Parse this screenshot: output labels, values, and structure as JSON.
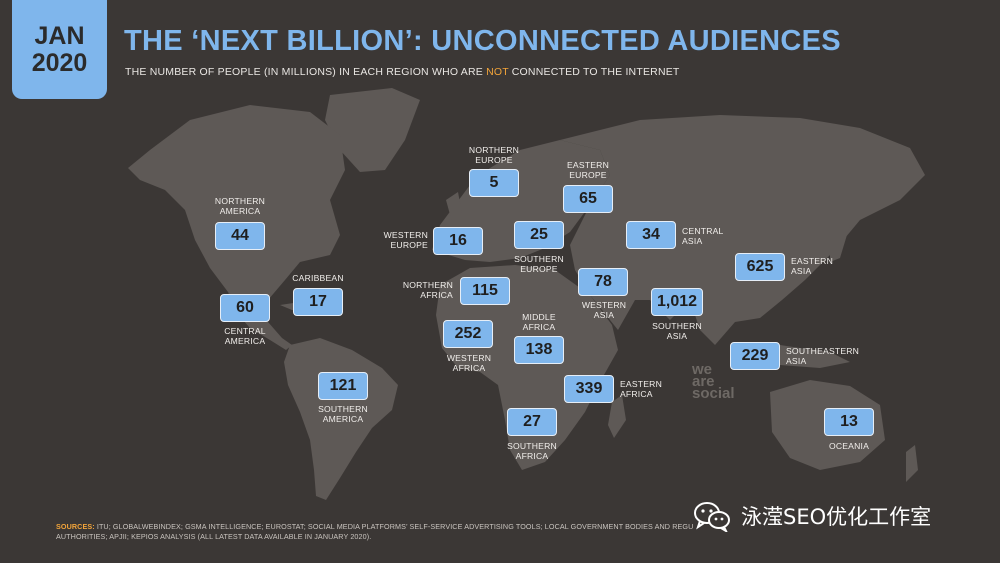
{
  "header": {
    "month": "JAN",
    "year": "2020",
    "title": "THE ‘NEXT BILLION’: UNCONNECTED AUDIENCES",
    "subtitle_before": "THE NUMBER OF PEOPLE (IN MILLIONS) IN EACH REGION WHO ARE ",
    "subtitle_highlight": "NOT",
    "subtitle_after": " CONNECTED TO THE INTERNET"
  },
  "regions": {
    "northern_america": {
      "value": "44",
      "name_1": "NORTHERN",
      "name_2": "AMERICA"
    },
    "central_america": {
      "value": "60",
      "name_1": "CENTRAL",
      "name_2": "AMERICA"
    },
    "caribbean": {
      "value": "17",
      "name_1": "CARIBBEAN"
    },
    "southern_america": {
      "value": "121",
      "name_1": "SOUTHERN",
      "name_2": "AMERICA"
    },
    "northern_europe": {
      "value": "5",
      "name_1": "NORTHERN",
      "name_2": "EUROPE"
    },
    "western_europe": {
      "value": "16",
      "name_1": "WESTERN",
      "name_2": "EUROPE"
    },
    "southern_europe": {
      "value": "25",
      "name_1": "SOUTHERN",
      "name_2": "EUROPE"
    },
    "eastern_europe": {
      "value": "65",
      "name_1": "EASTERN",
      "name_2": "EUROPE"
    },
    "northern_africa": {
      "value": "115",
      "name_1": "NORTHERN",
      "name_2": "AFRICA"
    },
    "western_africa": {
      "value": "252",
      "name_1": "WESTERN",
      "name_2": "AFRICA"
    },
    "middle_africa": {
      "value": "138",
      "name_1": "MIDDLE",
      "name_2": "AFRICA"
    },
    "eastern_africa": {
      "value": "339",
      "name_1": "EASTERN",
      "name_2": "AFRICA"
    },
    "southern_africa": {
      "value": "27",
      "name_1": "SOUTHERN",
      "name_2": "AFRICA"
    },
    "western_asia": {
      "value": "78",
      "name_1": "WESTERN",
      "name_2": "ASIA"
    },
    "central_asia": {
      "value": "34",
      "name_1": "CENTRAL",
      "name_2": "ASIA"
    },
    "southern_asia": {
      "value": "1,012",
      "name_1": "SOUTHERN",
      "name_2": "ASIA"
    },
    "eastern_asia": {
      "value": "625",
      "name_1": "EASTERN",
      "name_2": "ASIA"
    },
    "southeastern_asia": {
      "value": "229",
      "name_1": "SOUTHEASTERN",
      "name_2": "ASIA"
    },
    "oceania": {
      "value": "13",
      "name_1": "OCEANIA"
    }
  },
  "watermark": {
    "line_1": "we",
    "line_2": "are",
    "line_3": "social"
  },
  "footer": {
    "sources_key": "SOURCES:",
    "sources_text_1": " ITU; GLOBALWEBINDEX; GSMA INTELLIGENCE; EUROSTAT; SOCIAL MEDIA PLATFORMS’ SELF-SERVICE ADVERTISING TOOLS; LOCAL GOVERNMENT BODIES AND REGU",
    "sources_text_2": "AUTHORITIES; APJII; KEPIOS ANALYSIS (ALL LATEST DATA AVAILABLE IN JANUARY 2020)."
  },
  "wechat_overlay": {
    "text": "泳滢SEO优化工作室",
    "icon": "wechat-icon"
  },
  "colors": {
    "background": "#3b3735",
    "land": "#5e5956",
    "accent": "#7fb6ec",
    "highlight": "#f2a43a"
  }
}
